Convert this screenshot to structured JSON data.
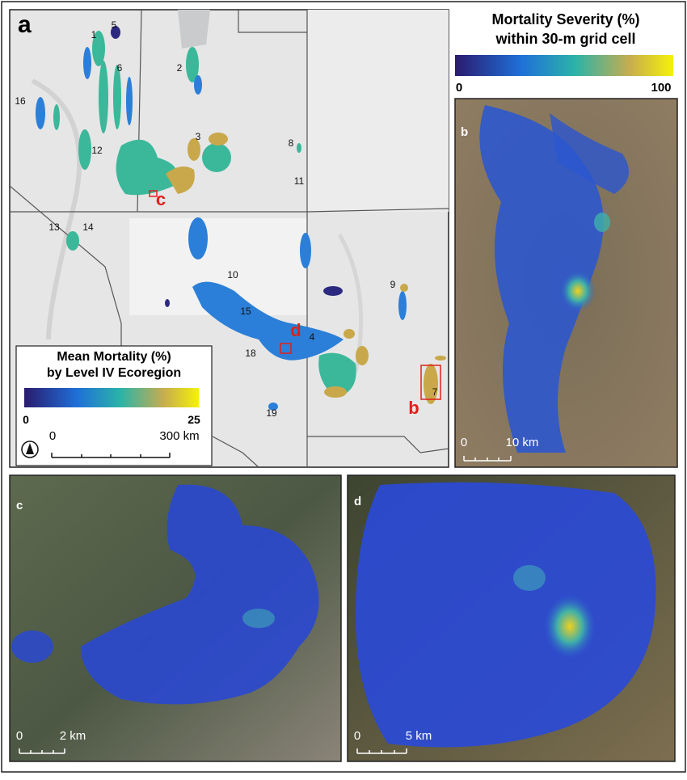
{
  "map": {
    "panel_labels": [
      "a",
      "b",
      "c",
      "d"
    ],
    "region_labels": [
      "1",
      "5",
      "2",
      "6",
      "16",
      "12",
      "3",
      "8",
      "11",
      "13",
      "14",
      "10",
      "15",
      "9",
      "4",
      "18",
      "7",
      "19"
    ],
    "inset_markers": [
      "c",
      "d",
      "b"
    ],
    "mean_legend": {
      "title": [
        "Mean Mortality (%)",
        "by Level IV Ecoregion"
      ],
      "min": "0",
      "max": "25"
    },
    "map_scale": {
      "start": "0",
      "end": "300 km"
    },
    "severity_legend": {
      "title": [
        "Mortality Severity (%)",
        "within 30-m grid cell"
      ],
      "min": "0",
      "max": "100"
    },
    "b_scale": {
      "start": "0",
      "end": "10 km"
    },
    "c_scale": {
      "start": "0",
      "end": "2 km"
    },
    "d_scale": {
      "start": "0",
      "end": "5 km"
    }
  }
}
